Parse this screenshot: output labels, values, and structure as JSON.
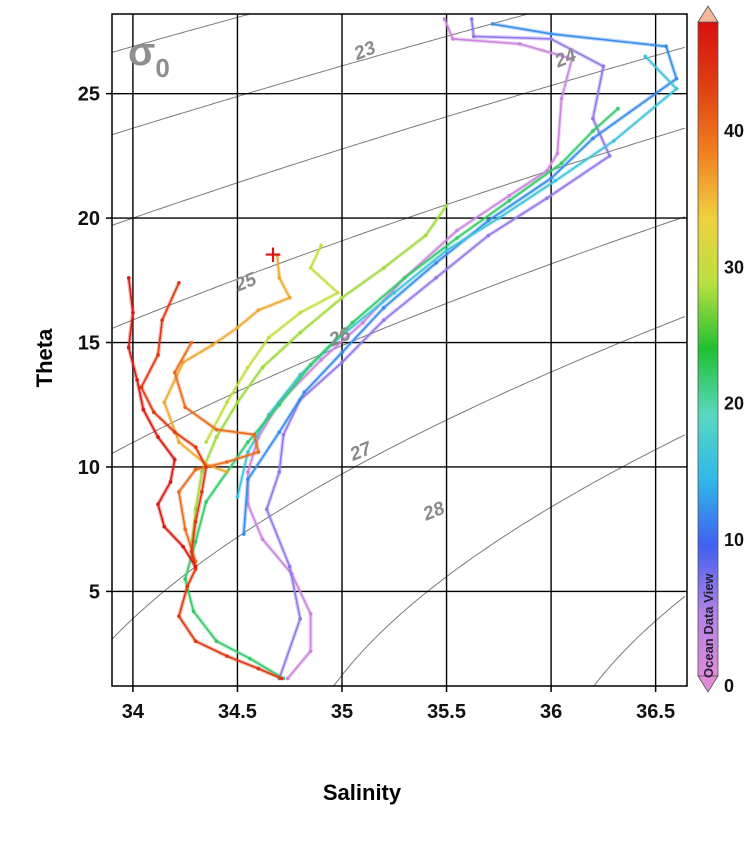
{
  "chart_data": {
    "type": "scatter",
    "title": "",
    "xlabel": "Salinity",
    "ylabel": "Theta",
    "xlim": [
      33.9,
      36.65
    ],
    "ylim": [
      1.2,
      28.2
    ],
    "x_ticks": [
      "34",
      "34.5",
      "35",
      "35.5",
      "36",
      "36.5"
    ],
    "x_tick_values": [
      34,
      34.5,
      35,
      35.5,
      36,
      36.5
    ],
    "y_ticks": [
      "5",
      "10",
      "15",
      "20",
      "25"
    ],
    "y_tick_values": [
      5,
      10,
      15,
      20,
      25
    ],
    "grid": true,
    "isopycnal_label": "σ",
    "isopycnal_label_sub": "0",
    "isopycnals": [
      {
        "label": "23",
        "sigma": 23,
        "label_at": [
          35.12,
          26.5
        ]
      },
      {
        "label": "24",
        "sigma": 24,
        "label_at": [
          36.08,
          26.2
        ]
      },
      {
        "label": "25",
        "sigma": 25,
        "label_at": [
          34.55,
          17.2
        ]
      },
      {
        "label": "26",
        "sigma": 26,
        "label_at": [
          35.0,
          15.0
        ]
      },
      {
        "label": "27",
        "sigma": 27,
        "label_at": [
          35.1,
          10.4
        ]
      },
      {
        "label": "28",
        "sigma": 28,
        "label_at": [
          35.45,
          8.0
        ]
      },
      {
        "label": "",
        "sigma": 21
      },
      {
        "label": "",
        "sigma": 22
      },
      {
        "label": "",
        "sigma": 29
      },
      {
        "label": "",
        "sigma": 30
      }
    ],
    "colorbar": {
      "min": 0,
      "max": 48,
      "ticks": [
        "0",
        "10",
        "20",
        "30",
        "40"
      ],
      "tick_values": [
        0,
        10,
        20,
        30,
        40
      ],
      "stops": [
        "#e08ad8",
        "#b080e8",
        "#4060f0",
        "#30b8e8",
        "#58d8c0",
        "#20c030",
        "#b8e040",
        "#f0d040",
        "#f08020",
        "#e04010",
        "#d81010"
      ],
      "top_color": "#f7b79a",
      "watermark": "Ocean Data View"
    },
    "series": [
      {
        "color_value": 2,
        "points": [
          [
            35.49,
            28.0
          ],
          [
            35.53,
            27.2
          ],
          [
            35.85,
            27.0
          ],
          [
            36.1,
            26.4
          ],
          [
            36.05,
            24.8
          ],
          [
            36.03,
            22.6
          ],
          [
            35.98,
            21.9
          ],
          [
            35.8,
            20.9
          ],
          [
            35.55,
            19.5
          ],
          [
            35.3,
            17.6
          ],
          [
            35.1,
            15.8
          ],
          [
            34.9,
            14.3
          ],
          [
            34.7,
            12.6
          ],
          [
            34.6,
            11.2
          ],
          [
            34.55,
            9.8
          ],
          [
            34.55,
            8.5
          ],
          [
            34.62,
            7.1
          ],
          [
            34.76,
            5.7
          ],
          [
            34.85,
            4.1
          ],
          [
            34.85,
            2.6
          ],
          [
            34.74,
            1.5
          ]
        ]
      },
      {
        "color_value": 6,
        "points": [
          [
            35.62,
            28.0
          ],
          [
            35.63,
            27.3
          ],
          [
            36.0,
            27.2
          ],
          [
            36.25,
            26.1
          ],
          [
            36.2,
            24.0
          ],
          [
            36.28,
            22.5
          ],
          [
            35.98,
            20.8
          ],
          [
            35.7,
            19.3
          ],
          [
            35.45,
            17.6
          ],
          [
            35.2,
            15.9
          ],
          [
            35.0,
            14.2
          ],
          [
            34.8,
            12.7
          ],
          [
            34.72,
            11.3
          ],
          [
            34.7,
            9.8
          ],
          [
            34.64,
            8.3
          ],
          [
            34.75,
            6.0
          ],
          [
            34.8,
            3.9
          ],
          [
            34.7,
            1.5
          ]
        ]
      },
      {
        "color_value": 12,
        "points": [
          [
            35.72,
            27.8
          ],
          [
            36.0,
            27.4
          ],
          [
            36.55,
            26.9
          ],
          [
            36.6,
            25.6
          ],
          [
            36.2,
            23.2
          ],
          [
            36.0,
            21.6
          ],
          [
            35.7,
            19.9
          ],
          [
            35.45,
            18.2
          ],
          [
            35.2,
            16.4
          ],
          [
            35.0,
            14.6
          ],
          [
            34.82,
            13.0
          ],
          [
            34.7,
            11.4
          ],
          [
            34.55,
            9.5
          ],
          [
            34.53,
            7.3
          ]
        ]
      },
      {
        "color_value": 16,
        "points": [
          [
            36.45,
            26.5
          ],
          [
            36.6,
            25.2
          ],
          [
            36.3,
            23.1
          ],
          [
            36.02,
            21.5
          ],
          [
            35.75,
            20.0
          ],
          [
            35.5,
            18.7
          ],
          [
            35.25,
            17.0
          ],
          [
            35.0,
            15.3
          ],
          [
            34.8,
            13.7
          ],
          [
            34.65,
            12.1
          ],
          [
            34.55,
            10.6
          ],
          [
            34.5,
            8.8
          ]
        ]
      },
      {
        "color_value": 22,
        "points": [
          [
            36.32,
            24.4
          ],
          [
            36.2,
            23.5
          ],
          [
            36.05,
            22.2
          ],
          [
            35.8,
            20.7
          ],
          [
            35.55,
            19.2
          ],
          [
            35.3,
            17.6
          ],
          [
            35.05,
            15.8
          ],
          [
            34.85,
            14.1
          ],
          [
            34.7,
            12.5
          ],
          [
            34.55,
            11.0
          ],
          [
            34.45,
            9.8
          ],
          [
            34.35,
            8.6
          ],
          [
            34.3,
            7.0
          ],
          [
            34.25,
            5.5
          ],
          [
            34.29,
            4.2
          ],
          [
            34.4,
            3.0
          ],
          [
            34.56,
            2.3
          ],
          [
            34.72,
            1.5
          ]
        ]
      },
      {
        "color_value": 28,
        "points": [
          [
            35.5,
            20.5
          ],
          [
            35.4,
            19.3
          ],
          [
            35.2,
            18.0
          ],
          [
            35.0,
            16.8
          ],
          [
            34.8,
            15.4
          ],
          [
            34.62,
            14.0
          ],
          [
            34.5,
            12.6
          ],
          [
            34.4,
            11.2
          ],
          [
            34.33,
            9.8
          ],
          [
            34.3,
            8.3
          ],
          [
            34.28,
            6.8
          ]
        ]
      },
      {
        "color_value": 30,
        "points": [
          [
            34.9,
            18.9
          ],
          [
            34.85,
            18.0
          ],
          [
            34.98,
            17.0
          ],
          [
            34.8,
            16.2
          ],
          [
            34.65,
            15.2
          ],
          [
            34.55,
            14.0
          ],
          [
            34.45,
            12.6
          ],
          [
            34.35,
            11.0
          ]
        ]
      },
      {
        "color_value": 36,
        "points": [
          [
            34.69,
            18.5
          ],
          [
            34.7,
            17.6
          ],
          [
            34.75,
            16.8
          ],
          [
            34.6,
            16.3
          ],
          [
            34.5,
            15.6
          ],
          [
            34.38,
            14.9
          ],
          [
            34.24,
            14.2
          ],
          [
            34.15,
            12.6
          ],
          [
            34.22,
            11.0
          ],
          [
            34.35,
            10.1
          ],
          [
            34.45,
            9.8
          ]
        ]
      },
      {
        "color_value": 40,
        "points": [
          [
            34.28,
            15.0
          ],
          [
            34.2,
            13.8
          ],
          [
            34.25,
            12.4
          ],
          [
            34.4,
            11.5
          ],
          [
            34.58,
            11.3
          ],
          [
            34.6,
            10.6
          ],
          [
            34.45,
            10.2
          ],
          [
            34.3,
            9.9
          ],
          [
            34.22,
            9.0
          ],
          [
            34.25,
            7.5
          ],
          [
            34.3,
            6.2
          ]
        ]
      },
      {
        "color_value": 44,
        "points": [
          [
            34.22,
            17.4
          ],
          [
            34.14,
            15.9
          ],
          [
            34.12,
            14.5
          ],
          [
            34.04,
            13.2
          ],
          [
            34.1,
            12.2
          ],
          [
            34.2,
            11.4
          ],
          [
            34.3,
            10.8
          ],
          [
            34.35,
            10.0
          ],
          [
            34.33,
            9.0
          ],
          [
            34.3,
            7.8
          ],
          [
            34.28,
            6.6
          ],
          [
            34.3,
            5.9
          ],
          [
            34.26,
            5.2
          ],
          [
            34.22,
            4.0
          ],
          [
            34.3,
            3.0
          ],
          [
            34.45,
            2.4
          ],
          [
            34.6,
            1.9
          ],
          [
            34.71,
            1.5
          ]
        ]
      },
      {
        "color_value": 47,
        "points": [
          [
            33.98,
            17.6
          ],
          [
            34.0,
            16.2
          ],
          [
            33.98,
            14.8
          ],
          [
            34.02,
            13.5
          ],
          [
            34.05,
            12.3
          ],
          [
            34.12,
            11.2
          ],
          [
            34.2,
            10.3
          ],
          [
            34.18,
            9.4
          ],
          [
            34.12,
            8.5
          ],
          [
            34.15,
            7.6
          ],
          [
            34.24,
            6.8
          ],
          [
            34.3,
            6.0
          ]
        ]
      }
    ],
    "marker": {
      "label": "+",
      "x": 34.67,
      "y": 18.5
    }
  }
}
